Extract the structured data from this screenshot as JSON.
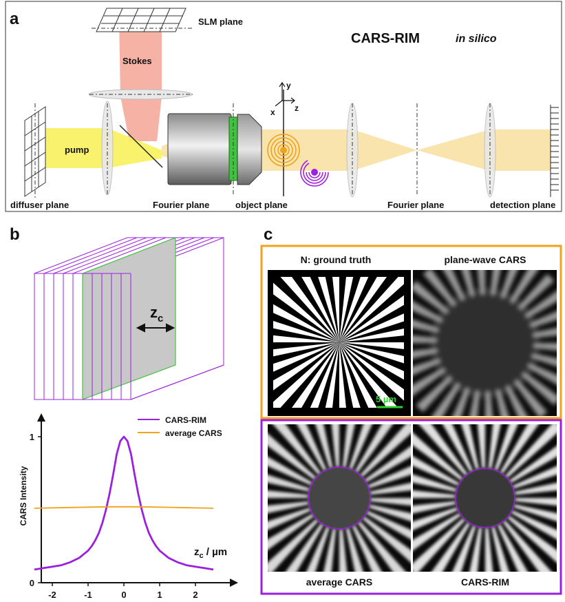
{
  "panels": {
    "a": "a",
    "b": "b",
    "c": "c"
  },
  "panel_a": {
    "title": "CARS-RIM",
    "title_suffix": "in silico",
    "labels": {
      "slm_plane": "SLM plane",
      "stokes": "Stokes",
      "pump": "pump",
      "diffuser_plane": "diffuser plane",
      "fourier_plane_1": "Fourier plane",
      "object_plane": "object plane",
      "fourier_plane_2": "Fourier plane",
      "detection_plane": "detection plane"
    },
    "axes": {
      "x": "x",
      "y": "y",
      "z": "z"
    },
    "colors": {
      "pump": "#f7f15c",
      "stokes": "#f4a495",
      "beam": "#f8dfa0",
      "orange": "#f2a11b",
      "purple": "#a020e0",
      "green": "#3fc43f"
    }
  },
  "panel_b": {
    "zc_main": "z",
    "zc_sub": "c",
    "chart_data": {
      "type": "line",
      "xlabel_main": "z",
      "xlabel_sub": "c",
      "xlabel_unit": " / µm",
      "ylabel": "CARS Intensity",
      "xlim": [
        -2.5,
        2.7
      ],
      "ylim": [
        0,
        1.05
      ],
      "xticks": [
        "-2",
        "-1",
        "0",
        "1",
        "2"
      ],
      "yticks": [
        "0",
        "1"
      ],
      "series": [
        {
          "name": "CARS-RIM",
          "color": "#9b1fe0",
          "x": [
            -2.5,
            -2.25,
            -2.0,
            -1.75,
            -1.5,
            -1.25,
            -1.0,
            -0.9,
            -0.8,
            -0.7,
            -0.6,
            -0.5,
            -0.4,
            -0.3,
            -0.2,
            -0.1,
            0,
            0.1,
            0.2,
            0.3,
            0.4,
            0.5,
            0.6,
            0.7,
            0.8,
            0.9,
            1.0,
            1.25,
            1.5,
            1.75,
            2.0,
            2.25,
            2.5
          ],
          "y": [
            0.09,
            0.1,
            0.11,
            0.12,
            0.14,
            0.17,
            0.22,
            0.25,
            0.29,
            0.34,
            0.41,
            0.5,
            0.61,
            0.74,
            0.88,
            0.97,
            1.0,
            0.97,
            0.88,
            0.74,
            0.61,
            0.5,
            0.41,
            0.34,
            0.29,
            0.25,
            0.22,
            0.17,
            0.14,
            0.12,
            0.11,
            0.1,
            0.09
          ]
        },
        {
          "name": "average CARS",
          "color": "#f2a11b",
          "x": [
            -2.5,
            -1.5,
            -0.5,
            0,
            0.5,
            1.5,
            2.5
          ],
          "y": [
            0.51,
            0.515,
            0.52,
            0.52,
            0.52,
            0.515,
            0.51
          ]
        }
      ]
    }
  },
  "panel_c": {
    "top_left": "N: ground truth",
    "top_right": "plane-wave CARS",
    "bottom_left": "average CARS",
    "bottom_right": "CARS-RIM",
    "scale_bar": "5 µm",
    "colors": {
      "top_frame": "#f2a11b",
      "bottom_frame": "#9b1fe0",
      "scale": "#2ed12e"
    }
  }
}
